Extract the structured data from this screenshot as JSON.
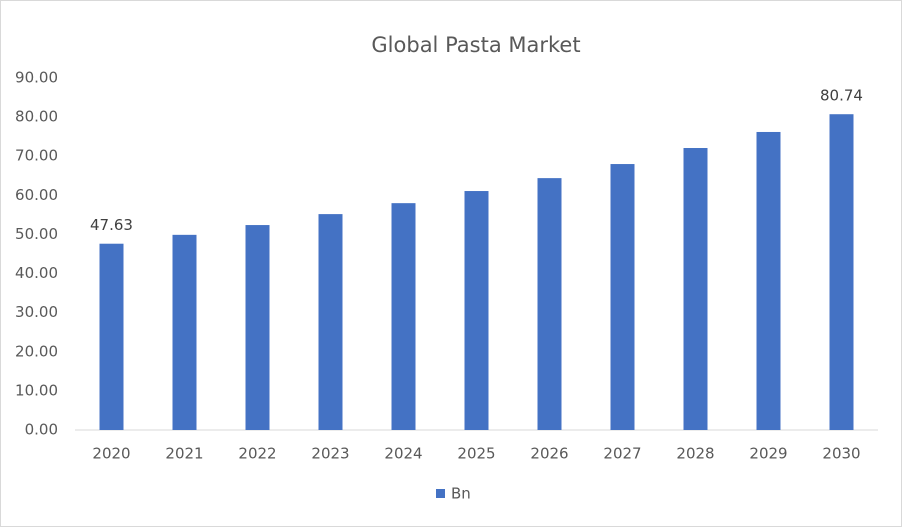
{
  "chart_data": {
    "type": "bar",
    "title": "Global Pasta Market",
    "categories": [
      "2020",
      "2021",
      "2022",
      "2023",
      "2024",
      "2025",
      "2026",
      "2027",
      "2028",
      "2029",
      "2030"
    ],
    "series": [
      {
        "name": "Bn",
        "color": "#4472c4",
        "values": [
          47.63,
          49.9,
          52.4,
          55.2,
          58.0,
          61.1,
          64.4,
          68.0,
          72.1,
          76.2,
          80.74
        ],
        "value_labels": [
          "47.63",
          null,
          null,
          null,
          null,
          null,
          null,
          null,
          null,
          null,
          "80.74"
        ]
      }
    ],
    "ylim": [
      0,
      90
    ],
    "yticks": [
      {
        "value": 0,
        "label": "0.00"
      },
      {
        "value": 10,
        "label": "10.00"
      },
      {
        "value": 20,
        "label": "20.00"
      },
      {
        "value": 30,
        "label": "30.00"
      },
      {
        "value": 40,
        "label": "40.00"
      },
      {
        "value": 50,
        "label": "50.00"
      },
      {
        "value": 60,
        "label": "60.00"
      },
      {
        "value": 70,
        "label": "70.00"
      },
      {
        "value": 80,
        "label": "80.00"
      },
      {
        "value": 90,
        "label": "90.00"
      }
    ],
    "grid": false,
    "legend": "bottom"
  }
}
